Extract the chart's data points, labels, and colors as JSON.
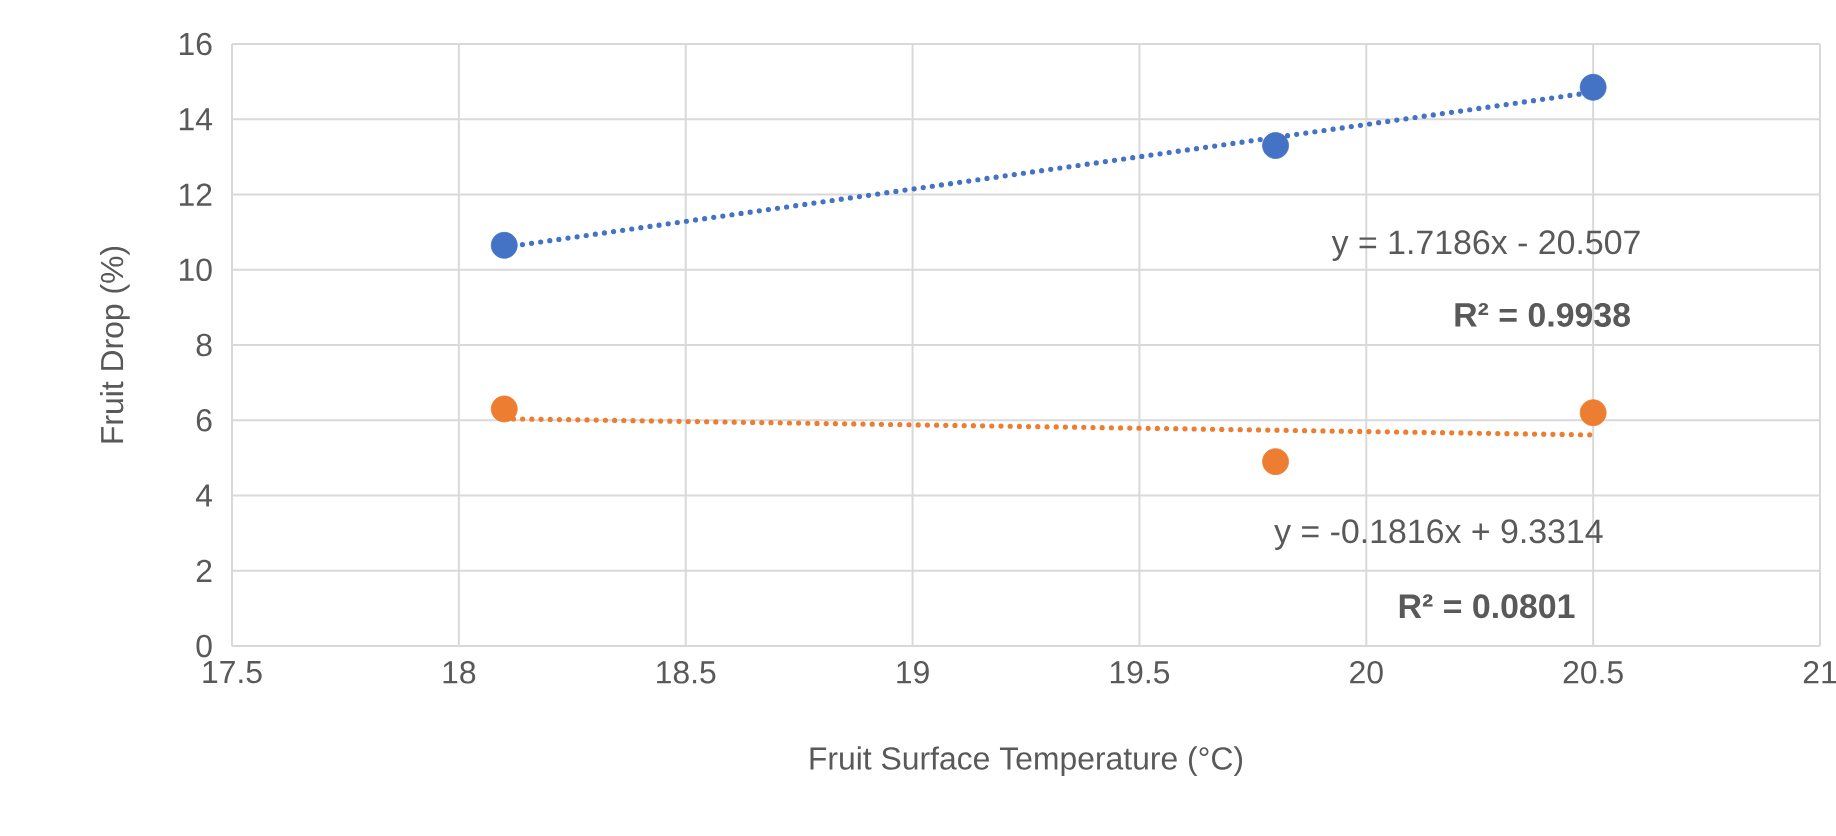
{
  "chart_data": {
    "type": "scatter",
    "xlabel": "Fruit Surface Temperature (°C)",
    "ylabel": "Fruit  Drop (%)",
    "xlim": [
      17.5,
      21
    ],
    "ylim": [
      0,
      16
    ],
    "xticks": [
      17.5,
      18,
      18.5,
      19,
      19.5,
      20,
      20.5,
      21
    ],
    "yticks": [
      0,
      2,
      4,
      6,
      8,
      10,
      12,
      14,
      16
    ],
    "grid": true,
    "series": [
      {
        "marker": "circle",
        "color": "#4472c4",
        "x": [
          18.1,
          19.8,
          20.5
        ],
        "values": [
          10.65,
          13.3,
          14.85
        ]
      },
      {
        "marker": "circle",
        "color": "#ed7d31",
        "x": [
          18.1,
          19.8,
          20.5
        ],
        "values": [
          6.3,
          4.9,
          6.2
        ]
      },
      {
        "type": "line",
        "marker": "none",
        "line_style": "dotted",
        "color": "#4472c4",
        "x": [
          18.1,
          20.5
        ],
        "values": [
          10.6,
          14.72
        ]
      },
      {
        "type": "line",
        "marker": "none",
        "line_style": "dotted",
        "color": "#ed7d31",
        "x": [
          18.1,
          20.5
        ],
        "values": [
          6.04,
          5.61
        ]
      }
    ],
    "annotations": [
      "y = 1.7186x - 20.507",
      "**R² = 0.9938**",
      "y = -0.1816x + 9.3314",
      "**R² = 0.0801**"
    ]
  }
}
